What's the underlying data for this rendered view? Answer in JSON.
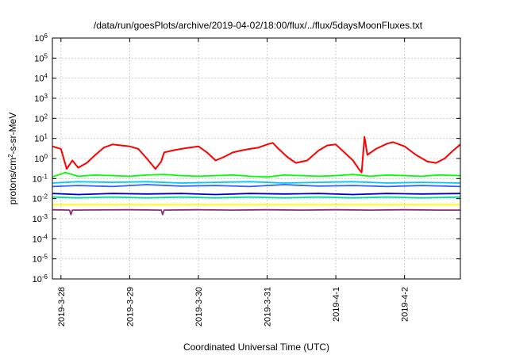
{
  "chart_data": {
    "type": "line",
    "title": "/data/run/goesPlots/archive/2019-04-02/18:00/flux/../flux/5daysMoonFluxes.txt",
    "xlabel": "Coordinated Universal Time (UTC)",
    "ylabel_parts": [
      "protons/cm",
      "2",
      "-s-sr-MeV"
    ],
    "x_range": [
      "2019-03-27T21:00",
      "2019-04-02T19:30"
    ],
    "x_ticks": [
      "2019-3-28",
      "2019-3-29",
      "2019-3-30",
      "2019-3-31",
      "2019-4-1",
      "2019-4-2"
    ],
    "y_scale": "log",
    "ylim": [
      1e-06,
      1000000.0
    ],
    "y_tick_exponents": [
      -6,
      -5,
      -4,
      -3,
      -2,
      -1,
      0,
      1,
      2,
      3,
      4,
      5,
      6
    ],
    "y_tick_base": "10",
    "grid": true,
    "legend": "none",
    "series": [
      {
        "color": "#ff0000",
        "points": [
          [
            "2019-03-27T21:00",
            4.0
          ],
          [
            "2019-03-28T00:00",
            3.0
          ],
          [
            "2019-03-28T02:00",
            0.3
          ],
          [
            "2019-03-28T04:00",
            0.8
          ],
          [
            "2019-03-28T06:00",
            0.35
          ],
          [
            "2019-03-28T09:00",
            0.6
          ],
          [
            "2019-03-28T12:00",
            1.5
          ],
          [
            "2019-03-28T15:00",
            3.5
          ],
          [
            "2019-03-28T18:00",
            5.0
          ],
          [
            "2019-03-28T21:00",
            4.5
          ],
          [
            "2019-03-29T00:00",
            4.0
          ],
          [
            "2019-03-29T03:00",
            3.0
          ],
          [
            "2019-03-29T06:00",
            1.0
          ],
          [
            "2019-03-29T09:00",
            0.3
          ],
          [
            "2019-03-29T11:00",
            0.7
          ],
          [
            "2019-03-29T12:00",
            2.0
          ],
          [
            "2019-03-29T15:00",
            2.5
          ],
          [
            "2019-03-29T18:00",
            3.0
          ],
          [
            "2019-03-29T21:00",
            3.5
          ],
          [
            "2019-03-30T00:00",
            4.0
          ],
          [
            "2019-03-30T03:00",
            2.0
          ],
          [
            "2019-03-30T06:00",
            0.8
          ],
          [
            "2019-03-30T09:00",
            1.2
          ],
          [
            "2019-03-30T12:00",
            2.0
          ],
          [
            "2019-03-30T15:00",
            2.5
          ],
          [
            "2019-03-30T18:00",
            3.0
          ],
          [
            "2019-03-30T21:00",
            3.5
          ],
          [
            "2019-03-31T00:00",
            5.0
          ],
          [
            "2019-03-31T02:00",
            6.0
          ],
          [
            "2019-03-31T04:00",
            3.0
          ],
          [
            "2019-03-31T07:00",
            1.2
          ],
          [
            "2019-03-31T10:00",
            0.6
          ],
          [
            "2019-03-31T14:00",
            0.8
          ],
          [
            "2019-03-31T18:00",
            2.5
          ],
          [
            "2019-03-31T21:00",
            4.5
          ],
          [
            "2019-04-01T00:00",
            5.0
          ],
          [
            "2019-04-01T03:00",
            2.0
          ],
          [
            "2019-04-01T06:00",
            0.8
          ],
          [
            "2019-04-01T08:00",
            0.3
          ],
          [
            "2019-04-01T09:00",
            0.2
          ],
          [
            "2019-04-01T10:00",
            12.0
          ],
          [
            "2019-04-01T11:00",
            1.5
          ],
          [
            "2019-04-01T14:00",
            3.0
          ],
          [
            "2019-04-01T18:00",
            5.5
          ],
          [
            "2019-04-01T20:00",
            6.5
          ],
          [
            "2019-04-02T00:00",
            4.0
          ],
          [
            "2019-04-02T04:00",
            1.5
          ],
          [
            "2019-04-02T08:00",
            0.7
          ],
          [
            "2019-04-02T11:00",
            0.6
          ],
          [
            "2019-04-02T14:00",
            1.0
          ],
          [
            "2019-04-02T17:00",
            2.5
          ],
          [
            "2019-04-02T19:30",
            5.0
          ]
        ]
      },
      {
        "color": "#00ff00",
        "points": [
          [
            "2019-03-27T21:00",
            0.12
          ],
          [
            "2019-03-28T01:30",
            0.2
          ],
          [
            "2019-03-28T06:00",
            0.13
          ],
          [
            "2019-03-28T12:00",
            0.15
          ],
          [
            "2019-03-28T18:00",
            0.14
          ],
          [
            "2019-03-29T00:00",
            0.13
          ],
          [
            "2019-03-29T06:00",
            0.15
          ],
          [
            "2019-03-29T12:00",
            0.16
          ],
          [
            "2019-03-29T18:00",
            0.14
          ],
          [
            "2019-03-30T00:00",
            0.13
          ],
          [
            "2019-03-30T06:00",
            0.14
          ],
          [
            "2019-03-30T12:00",
            0.15
          ],
          [
            "2019-03-30T18:00",
            0.13
          ],
          [
            "2019-03-31T00:00",
            0.12
          ],
          [
            "2019-03-31T06:00",
            0.15
          ],
          [
            "2019-03-31T12:00",
            0.14
          ],
          [
            "2019-03-31T18:00",
            0.13
          ],
          [
            "2019-04-01T00:00",
            0.14
          ],
          [
            "2019-04-01T06:00",
            0.16
          ],
          [
            "2019-04-01T12:00",
            0.13
          ],
          [
            "2019-04-01T18:00",
            0.15
          ],
          [
            "2019-04-02T00:00",
            0.14
          ],
          [
            "2019-04-02T06:00",
            0.13
          ],
          [
            "2019-04-02T12:00",
            0.15
          ],
          [
            "2019-04-02T19:30",
            0.14
          ]
        ]
      },
      {
        "color": "#00c8ff",
        "points": [
          [
            "2019-03-27T21:00",
            0.06
          ],
          [
            "2019-03-28T06:00",
            0.07
          ],
          [
            "2019-03-28T18:00",
            0.065
          ],
          [
            "2019-03-29T06:00",
            0.07
          ],
          [
            "2019-03-29T18:00",
            0.06
          ],
          [
            "2019-03-30T06:00",
            0.065
          ],
          [
            "2019-03-30T18:00",
            0.07
          ],
          [
            "2019-03-31T06:00",
            0.06
          ],
          [
            "2019-03-31T18:00",
            0.065
          ],
          [
            "2019-04-01T06:00",
            0.07
          ],
          [
            "2019-04-01T18:00",
            0.06
          ],
          [
            "2019-04-02T06:00",
            0.065
          ],
          [
            "2019-04-02T19:30",
            0.06
          ]
        ]
      },
      {
        "color": "#3060ff",
        "points": [
          [
            "2019-03-27T21:00",
            0.04
          ],
          [
            "2019-03-28T06:00",
            0.045
          ],
          [
            "2019-03-28T18:00",
            0.04
          ],
          [
            "2019-03-29T06:00",
            0.05
          ],
          [
            "2019-03-29T18:00",
            0.042
          ],
          [
            "2019-03-30T06:00",
            0.045
          ],
          [
            "2019-03-30T18:00",
            0.04
          ],
          [
            "2019-03-31T06:00",
            0.05
          ],
          [
            "2019-03-31T18:00",
            0.042
          ],
          [
            "2019-04-01T06:00",
            0.045
          ],
          [
            "2019-04-01T18:00",
            0.04
          ],
          [
            "2019-04-02T06:00",
            0.045
          ],
          [
            "2019-04-02T19:30",
            0.04
          ]
        ]
      },
      {
        "color": "#00e0a0",
        "points": [
          [
            "2019-03-27T21:00",
            0.012
          ],
          [
            "2019-03-28T06:00",
            0.011
          ],
          [
            "2019-03-28T18:00",
            0.012
          ],
          [
            "2019-03-29T06:00",
            0.011
          ],
          [
            "2019-03-29T18:00",
            0.012
          ],
          [
            "2019-03-30T06:00",
            0.011
          ],
          [
            "2019-03-30T18:00",
            0.012
          ],
          [
            "2019-03-31T06:00",
            0.011
          ],
          [
            "2019-03-31T18:00",
            0.012
          ],
          [
            "2019-04-01T06:00",
            0.011
          ],
          [
            "2019-04-01T18:00",
            0.012
          ],
          [
            "2019-04-02T06:00",
            0.011
          ],
          [
            "2019-04-02T19:30",
            0.012
          ]
        ]
      },
      {
        "color": "#0000c8",
        "points": [
          [
            "2019-03-27T21:00",
            0.018
          ],
          [
            "2019-03-28T06:00",
            0.016
          ],
          [
            "2019-03-28T18:00",
            0.018
          ],
          [
            "2019-03-29T06:00",
            0.017
          ],
          [
            "2019-03-29T18:00",
            0.018
          ],
          [
            "2019-03-30T06:00",
            0.016
          ],
          [
            "2019-03-30T18:00",
            0.018
          ],
          [
            "2019-03-31T06:00",
            0.017
          ],
          [
            "2019-03-31T18:00",
            0.018
          ],
          [
            "2019-04-01T06:00",
            0.016
          ],
          [
            "2019-04-01T18:00",
            0.018
          ],
          [
            "2019-04-02T06:00",
            0.017
          ],
          [
            "2019-04-02T19:30",
            0.018
          ]
        ]
      },
      {
        "color": "#ffff00",
        "points": [
          [
            "2019-03-27T21:00",
            0.005
          ],
          [
            "2019-03-29T00:00",
            0.005
          ],
          [
            "2019-03-30T12:00",
            0.005
          ],
          [
            "2019-04-01T00:00",
            0.005
          ],
          [
            "2019-04-02T19:30",
            0.005
          ]
        ]
      },
      {
        "color": "#8b2e7a",
        "points": [
          [
            "2019-03-27T21:00",
            0.0028
          ],
          [
            "2019-03-28T03:00",
            0.0027
          ],
          [
            "2019-03-28T03:30",
            0.0016
          ],
          [
            "2019-03-28T04:00",
            0.0027
          ],
          [
            "2019-03-29T00:00",
            0.0028
          ],
          [
            "2019-03-29T11:00",
            0.0027
          ],
          [
            "2019-03-29T11:30",
            0.0016
          ],
          [
            "2019-03-29T12:00",
            0.0027
          ],
          [
            "2019-03-30T00:00",
            0.0028
          ],
          [
            "2019-03-30T12:00",
            0.0027
          ],
          [
            "2019-03-31T00:00",
            0.0028
          ],
          [
            "2019-03-31T12:00",
            0.0027
          ],
          [
            "2019-04-01T00:00",
            0.0028
          ],
          [
            "2019-04-01T12:00",
            0.0027
          ],
          [
            "2019-04-02T00:00",
            0.0028
          ],
          [
            "2019-04-02T12:00",
            0.0027
          ],
          [
            "2019-04-02T19:30",
            0.0027
          ]
        ]
      }
    ]
  }
}
